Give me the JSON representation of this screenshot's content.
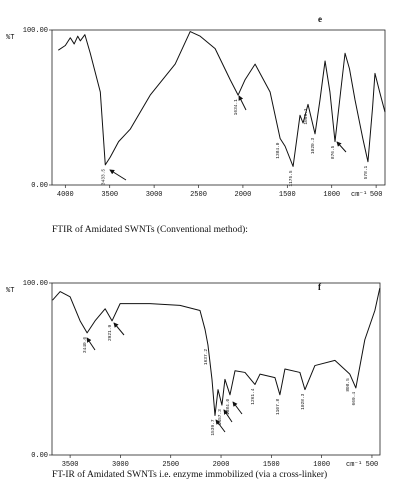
{
  "chart_data": [
    {
      "type": "line",
      "title": "FTIR of Amidated SWNTs (Conventional method):",
      "panel_label": "e",
      "ylabel": "%T",
      "xlabel": "cm⁻¹",
      "color": "#111111",
      "xlim": [
        4150,
        400
      ],
      "ylim": [
        0,
        100
      ],
      "xticks": [
        4000,
        3500,
        3000,
        2500,
        2000,
        1500,
        1000,
        500
      ],
      "yticks": [
        {
          "value": 0,
          "label": "0.00"
        },
        {
          "value": 100,
          "label": "100.00"
        }
      ],
      "x": [
        4079,
        4000,
        3944,
        3900,
        3860,
        3831,
        3780,
        3719,
        3606,
        3550,
        3494,
        3400,
        3269,
        3044,
        2763,
        2594,
        2481,
        2313,
        2144,
        2054,
        1975,
        1863,
        1694,
        1581,
        1525,
        1435,
        1357,
        1323,
        1267,
        1188,
        1132,
        1075,
        1020,
        963,
        900,
        850,
        800,
        738,
        650,
        592,
        540,
        513,
        460,
        400
      ],
      "values": [
        87,
        90,
        95,
        91,
        96,
        93,
        97,
        85,
        60,
        13,
        18,
        28,
        36,
        58,
        78,
        99,
        96,
        88,
        68,
        58,
        68,
        78,
        60,
        30,
        25,
        12,
        45,
        40,
        52,
        33,
        55,
        80,
        60,
        28,
        60,
        85,
        75,
        55,
        30,
        15,
        50,
        72,
        60,
        47
      ],
      "annotations": [
        {
          "x": 3550,
          "y": 13,
          "text": "3433.5"
        },
        {
          "x": 2054,
          "y": 58,
          "text": "1634.1"
        },
        {
          "x": 1581,
          "y": 30,
          "text": "1384.0"
        },
        {
          "x": 1435,
          "y": 12,
          "text": "1175.5"
        },
        {
          "x": 1267,
          "y": 52,
          "text": "1099.1"
        },
        {
          "x": 1188,
          "y": 33,
          "text": "1020.3"
        },
        {
          "x": 963,
          "y": 28,
          "text": "876.5"
        },
        {
          "x": 592,
          "y": 15,
          "text": "578.1"
        }
      ]
    },
    {
      "type": "line",
      "title": "FT-IR of Amidated SWNTs i.e. enzyme immobilized (via a cross-linker)",
      "panel_label": "f",
      "ylabel": "%T",
      "xlabel": "cm⁻¹",
      "color": "#111111",
      "xlim": [
        3680,
        420
      ],
      "ylim": [
        0,
        100
      ],
      "xticks": [
        3500,
        3000,
        2500,
        2000,
        1500,
        1000,
        500
      ],
      "yticks": [
        {
          "value": 0,
          "label": "0.00"
        },
        {
          "value": 100,
          "label": "100.00"
        }
      ],
      "x": [
        3675,
        3599,
        3500,
        3401,
        3331,
        3252,
        3152,
        3083,
        3003,
        2706,
        2408,
        2209,
        2159,
        2130,
        2090,
        2060,
        2030,
        1991,
        1961,
        1911,
        1861,
        1762,
        1663,
        1613,
        1464,
        1415,
        1365,
        1216,
        1166,
        1067,
        868,
        720,
        660,
        571,
        471,
        422
      ],
      "values": [
        90,
        95,
        92,
        78,
        71,
        78,
        85,
        78,
        88,
        88,
        87,
        84,
        73,
        64,
        44,
        23,
        38,
        29,
        44,
        35,
        49,
        48,
        41,
        47,
        45,
        35,
        50,
        48,
        38,
        52,
        55,
        47,
        39,
        67,
        84,
        97
      ],
      "annotations": [
        {
          "x": 3331,
          "y": 71,
          "text": "3440.6"
        },
        {
          "x": 3083,
          "y": 78,
          "text": "2921.9"
        },
        {
          "x": 2130,
          "y": 64,
          "text": "1637.2"
        },
        {
          "x": 2060,
          "y": 23,
          "text": "1539.7"
        },
        {
          "x": 1991,
          "y": 29,
          "text": "1457.3"
        },
        {
          "x": 1911,
          "y": 35,
          "text": "1384.0"
        },
        {
          "x": 1663,
          "y": 41,
          "text": "1261.4"
        },
        {
          "x": 1415,
          "y": 35,
          "text": "1107.8"
        },
        {
          "x": 1166,
          "y": 38,
          "text": "1028.3"
        },
        {
          "x": 720,
          "y": 47,
          "text": "808.5"
        },
        {
          "x": 660,
          "y": 39,
          "text": "669.4"
        }
      ]
    }
  ]
}
